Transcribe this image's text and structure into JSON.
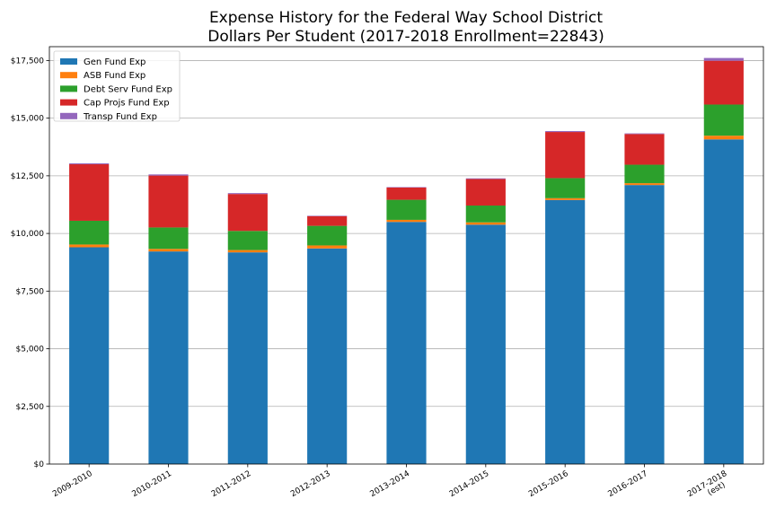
{
  "chart_data": {
    "type": "bar",
    "stacked": true,
    "title_line1": "Expense History for the Federal Way School District",
    "title_line2": "Dollars Per Student (2017-2018 Enrollment=22843)",
    "xlabel": "",
    "ylabel": "",
    "categories": [
      "2009-2010",
      "2010-2011",
      "2011-2012",
      "2012-2013",
      "2013-2014",
      "2014-2015",
      "2015-2016",
      "2016-2017",
      "2017-2018"
    ],
    "category_sublabels": [
      "",
      "",
      "",
      "",
      "",
      "",
      "",
      "",
      "(est)"
    ],
    "ylim": [
      0,
      18100
    ],
    "yticks": [
      0,
      2500,
      5000,
      7500,
      10000,
      12500,
      15000,
      17500
    ],
    "ytick_labels": [
      "$0",
      "$2,500",
      "$5,000",
      "$7,500",
      "$10,000",
      "$12,500",
      "$15,000",
      "$17,500"
    ],
    "grid": "horizontal",
    "legend_position": "top-left",
    "series": [
      {
        "name": "Gen Fund Exp",
        "color": "#1f77b4",
        "values": [
          9400,
          9220,
          9180,
          9350,
          10500,
          10380,
          11450,
          12100,
          14080
        ]
      },
      {
        "name": "ASB Fund Exp",
        "color": "#ff7f0e",
        "values": [
          120,
          110,
          100,
          130,
          90,
          100,
          80,
          80,
          160
        ]
      },
      {
        "name": "Debt Serv Fund Exp",
        "color": "#2ca02c",
        "values": [
          1030,
          930,
          830,
          850,
          870,
          730,
          870,
          800,
          1350
        ]
      },
      {
        "name": "Cap Projs Fund Exp",
        "color": "#d62728",
        "values": [
          2450,
          2250,
          1600,
          420,
          530,
          1150,
          2000,
          1330,
          1900
        ]
      },
      {
        "name": "Transp Fund Exp",
        "color": "#9467bd",
        "values": [
          40,
          50,
          40,
          20,
          20,
          30,
          40,
          30,
          120
        ]
      }
    ]
  }
}
